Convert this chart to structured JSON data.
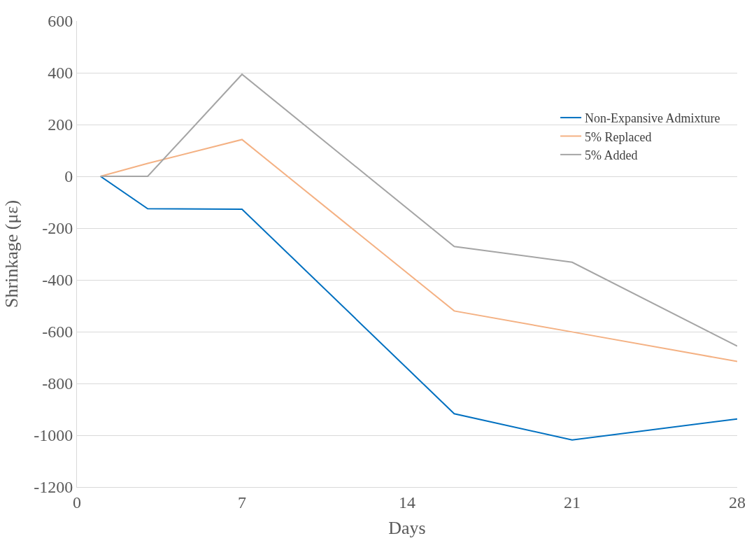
{
  "chart_data": {
    "type": "line",
    "xlabel": "Days",
    "ylabel": "Shrinkage (με)",
    "x": [
      1,
      3,
      7,
      16,
      21,
      28
    ],
    "series": [
      {
        "name": "Non-Expansive Admixture",
        "color": "#0070c0",
        "values": [
          0,
          -125,
          -127,
          -917,
          -1018,
          -937
        ]
      },
      {
        "name": "5% Replaced",
        "color": "#f4b183",
        "values": [
          0,
          50,
          142,
          -520,
          -601,
          -715
        ],
        "x": [
          1,
          3,
          7,
          16,
          21,
          28
        ]
      },
      {
        "name": "5% Added",
        "color": "#a5a5a5",
        "values": [
          0,
          0,
          394,
          -271,
          -332,
          -656
        ]
      }
    ],
    "xlim": [
      0,
      28
    ],
    "xticks": [
      0,
      7,
      14,
      21,
      28
    ],
    "ylim": [
      -1200,
      600
    ],
    "yticks": [
      -1200,
      -1000,
      -800,
      -600,
      -400,
      -200,
      0,
      200,
      400,
      600
    ],
    "grid": "y",
    "legend": "top right",
    "marker": "none",
    "line_style": "solid"
  }
}
